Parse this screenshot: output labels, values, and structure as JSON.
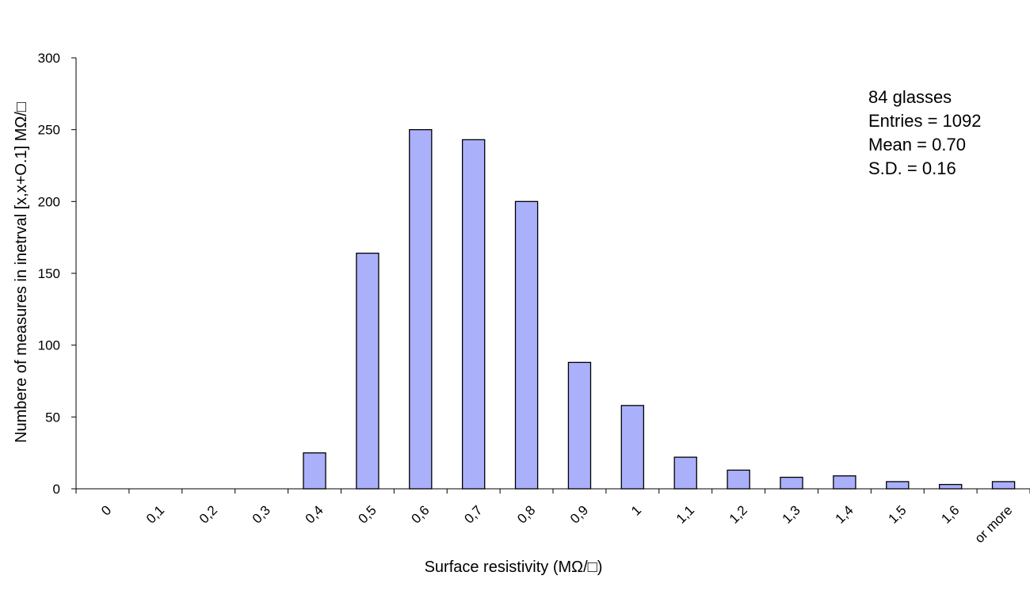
{
  "chart_data": {
    "type": "bar",
    "title": "",
    "xlabel": "Surface resistivity (MΩ/□)",
    "ylabel": "Numbere of measures in inetrval [x,x+O.1] MΩ/□",
    "categories": [
      "0",
      "0,1",
      "0,2",
      "0,3",
      "0,4",
      "0,5",
      "0,6",
      "0,7",
      "0,8",
      "0,9",
      "1",
      "1,1",
      "1,2",
      "1,3",
      "1,4",
      "1,5",
      "1,6",
      "or more"
    ],
    "values": [
      0,
      0,
      0,
      0,
      25,
      164,
      250,
      243,
      200,
      88,
      58,
      22,
      13,
      8,
      9,
      5,
      3,
      5
    ],
    "ylim": [
      0,
      300
    ],
    "yticks": [
      0,
      50,
      100,
      150,
      200,
      250,
      300
    ],
    "bar_color": "#aab0fa",
    "bar_edge_color": "#000000",
    "grid": false,
    "legend": "none",
    "annotation": [
      "84 glasses",
      "Entries = 1092",
      "Mean = 0.70",
      "S.D. = 0.16"
    ]
  }
}
